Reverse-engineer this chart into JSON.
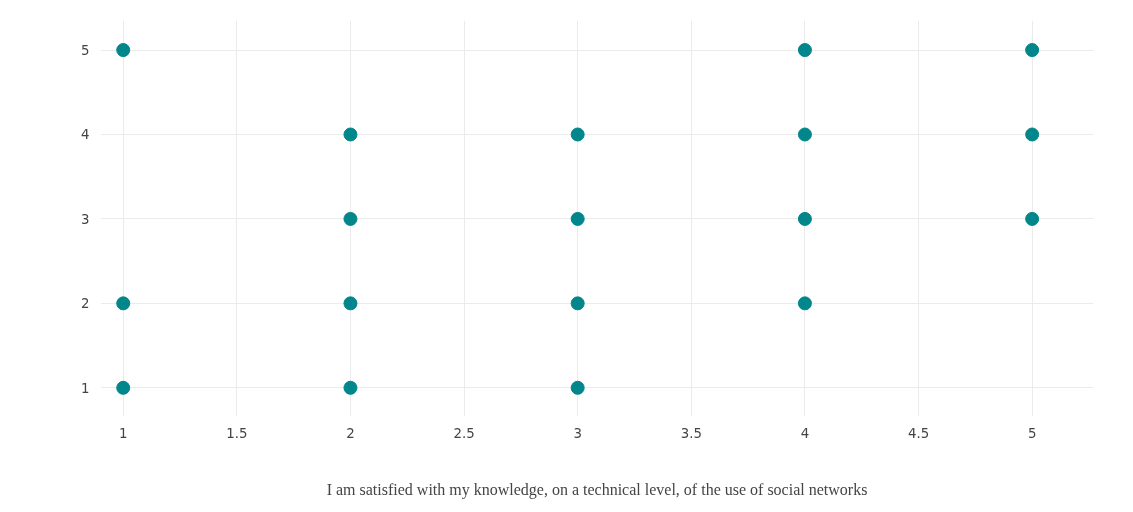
{
  "chart_data": {
    "type": "scatter",
    "xlabel": "I am satisfied with my knowledge, on a technical level, of the use of social networks",
    "x": [
      1,
      1,
      1,
      2,
      2,
      2,
      2,
      3,
      3,
      3,
      3,
      4,
      4,
      4,
      4,
      5,
      5,
      5
    ],
    "values": [
      5,
      2,
      1,
      4,
      3,
      2,
      1,
      4,
      3,
      2,
      1,
      5,
      4,
      3,
      2,
      5,
      4,
      3
    ],
    "color": "#00868b",
    "marker": "circle",
    "xlim": [
      0.9,
      5.27
    ],
    "ylim": [
      0.66,
      5.35
    ],
    "xticks": [
      1,
      1.5,
      2,
      2.5,
      3,
      3.5,
      4,
      4.5,
      5
    ],
    "yticks": [
      1,
      2,
      3,
      4,
      5
    ],
    "grid": true
  }
}
